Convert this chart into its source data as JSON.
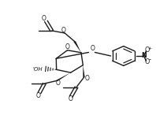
{
  "bg_color": "#ffffff",
  "line_color": "#1a1a1a",
  "lw": 1.0,
  "figsize": [
    1.98,
    1.51
  ],
  "dpi": 100,
  "ring_oxygen_label": "O",
  "glycosidic_oxygen_label": "O",
  "oh_label": "'OH",
  "no2_label": "N",
  "o_plus_label": "O",
  "o_minus_label": "O",
  "plus_label": "+",
  "minus_label": "-"
}
